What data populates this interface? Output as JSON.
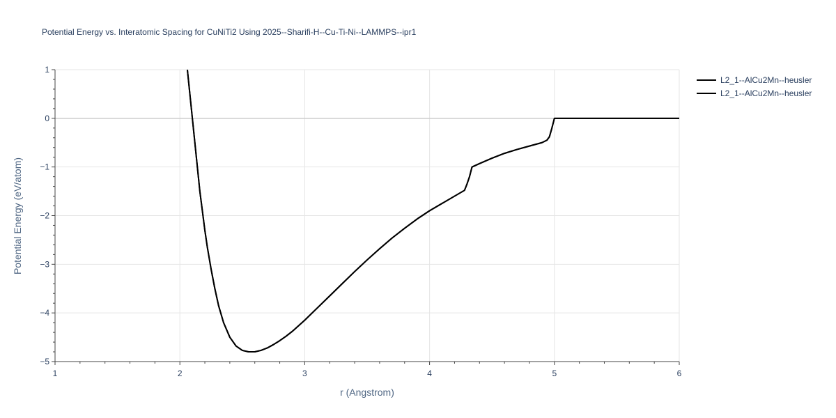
{
  "chart_data": {
    "type": "line",
    "title": "Potential Energy vs. Interatomic Spacing for CuNiTi2 Using 2025--Sharifi-H--Cu-Ti-Ni--LAMMPS--ipr1",
    "xlabel": "r (Angstrom)",
    "ylabel": "Potential Energy (eV/atom)",
    "xlim": [
      1,
      6
    ],
    "ylim": [
      -5,
      1
    ],
    "xticks": [
      1,
      2,
      3,
      4,
      5,
      6
    ],
    "xtick_labels": [
      "1",
      "2",
      "3",
      "4",
      "5",
      "6"
    ],
    "yticks": [
      1,
      0,
      -1,
      -2,
      -3,
      -4,
      -5
    ],
    "ytick_labels": [
      "1",
      "0",
      "−1",
      "−2",
      "−3",
      "−4",
      "−5"
    ],
    "grid": true,
    "legend_position": "top-right",
    "colors": {
      "line": "#000000",
      "grid": "#e5e5e5",
      "zeroline": "#cccccc",
      "text": "#2a3f5f"
    },
    "series": [
      {
        "name": "L2_1--AlCu2Mn--heusler",
        "x": [
          2.06,
          2.08,
          2.1,
          2.12,
          2.14,
          2.16,
          2.18,
          2.2,
          2.22,
          2.25,
          2.28,
          2.31,
          2.35,
          2.4,
          2.45,
          2.5,
          2.55,
          2.6,
          2.65,
          2.7,
          2.75,
          2.8,
          2.85,
          2.9,
          3.0,
          3.1,
          3.2,
          3.3,
          3.4,
          3.5,
          3.6,
          3.7,
          3.8,
          3.9,
          4.0,
          4.1,
          4.2,
          4.28,
          4.3,
          4.32,
          4.34,
          4.4,
          4.5,
          4.6,
          4.7,
          4.8,
          4.9,
          4.94,
          4.96,
          4.98,
          5.0,
          5.2,
          5.5,
          6.0
        ],
        "y": [
          1.0,
          0.5,
          0.0,
          -0.5,
          -1.0,
          -1.5,
          -1.9,
          -2.3,
          -2.65,
          -3.1,
          -3.5,
          -3.85,
          -4.2,
          -4.5,
          -4.68,
          -4.77,
          -4.8,
          -4.8,
          -4.77,
          -4.72,
          -4.65,
          -4.57,
          -4.48,
          -4.38,
          -4.15,
          -3.9,
          -3.65,
          -3.4,
          -3.15,
          -2.91,
          -2.68,
          -2.46,
          -2.26,
          -2.07,
          -1.9,
          -1.75,
          -1.6,
          -1.48,
          -1.35,
          -1.2,
          -1.0,
          -0.93,
          -0.82,
          -0.72,
          -0.64,
          -0.57,
          -0.5,
          -0.45,
          -0.38,
          -0.2,
          0.0,
          0.0,
          0.0,
          0.0
        ]
      },
      {
        "name": "L2_1--AlCu2Mn--heusler",
        "x": [
          2.06,
          2.08,
          2.1,
          2.12,
          2.14,
          2.16,
          2.18,
          2.2,
          2.22,
          2.25,
          2.28,
          2.31,
          2.35,
          2.4,
          2.45,
          2.5,
          2.55,
          2.6,
          2.65,
          2.7,
          2.75,
          2.8,
          2.85,
          2.9,
          3.0,
          3.1,
          3.2,
          3.3,
          3.4,
          3.5,
          3.6,
          3.7,
          3.8,
          3.9,
          4.0,
          4.1,
          4.2,
          4.28,
          4.3,
          4.32,
          4.34,
          4.4,
          4.5,
          4.6,
          4.7,
          4.8,
          4.9,
          4.94,
          4.96,
          4.98,
          5.0,
          5.2,
          5.5,
          6.0
        ],
        "y": [
          1.0,
          0.5,
          0.0,
          -0.5,
          -1.0,
          -1.5,
          -1.9,
          -2.3,
          -2.65,
          -3.1,
          -3.5,
          -3.85,
          -4.2,
          -4.5,
          -4.68,
          -4.77,
          -4.8,
          -4.8,
          -4.77,
          -4.72,
          -4.65,
          -4.57,
          -4.48,
          -4.38,
          -4.15,
          -3.9,
          -3.65,
          -3.4,
          -3.15,
          -2.91,
          -2.68,
          -2.46,
          -2.26,
          -2.07,
          -1.9,
          -1.75,
          -1.6,
          -1.48,
          -1.35,
          -1.2,
          -1.0,
          -0.93,
          -0.82,
          -0.72,
          -0.64,
          -0.57,
          -0.5,
          -0.45,
          -0.38,
          -0.2,
          0.0,
          0.0,
          0.0,
          0.0
        ]
      }
    ]
  }
}
